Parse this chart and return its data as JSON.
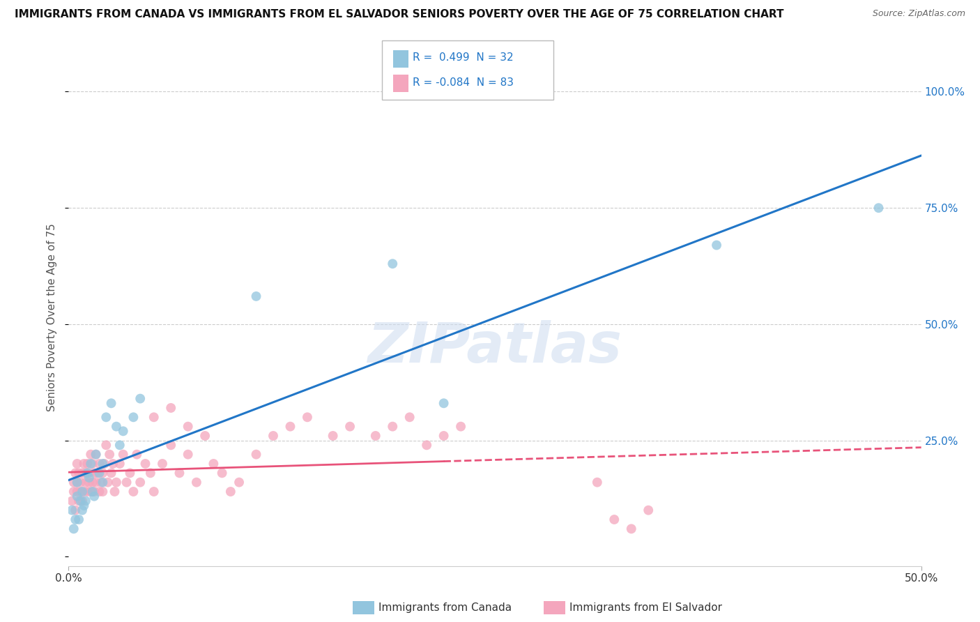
{
  "title": "IMMIGRANTS FROM CANADA VS IMMIGRANTS FROM EL SALVADOR SENIORS POVERTY OVER THE AGE OF 75 CORRELATION CHART",
  "source": "Source: ZipAtlas.com",
  "ylabel": "Seniors Poverty Over the Age of 75",
  "xlim": [
    0.0,
    0.5
  ],
  "ylim": [
    -0.02,
    1.05
  ],
  "R_canada": 0.499,
  "N_canada": 32,
  "R_salvador": -0.084,
  "N_salvador": 83,
  "canada_color": "#92c5de",
  "salvador_color": "#f4a6bd",
  "canada_line_color": "#2176c7",
  "salvador_line_color": "#e8537a",
  "watermark": "ZIPatlas",
  "canada_x": [
    0.002,
    0.003,
    0.004,
    0.005,
    0.005,
    0.006,
    0.007,
    0.008,
    0.008,
    0.009,
    0.01,
    0.011,
    0.012,
    0.013,
    0.014,
    0.015,
    0.016,
    0.018,
    0.02,
    0.02,
    0.022,
    0.025,
    0.028,
    0.03,
    0.032,
    0.038,
    0.042,
    0.11,
    0.19,
    0.22,
    0.38,
    0.475
  ],
  "canada_y": [
    0.1,
    0.06,
    0.08,
    0.13,
    0.16,
    0.08,
    0.12,
    0.1,
    0.14,
    0.11,
    0.12,
    0.18,
    0.17,
    0.2,
    0.14,
    0.13,
    0.22,
    0.18,
    0.16,
    0.2,
    0.3,
    0.33,
    0.28,
    0.24,
    0.27,
    0.3,
    0.34,
    0.56,
    0.63,
    0.33,
    0.67,
    0.75
  ],
  "salvador_x": [
    0.002,
    0.003,
    0.003,
    0.004,
    0.004,
    0.005,
    0.005,
    0.005,
    0.006,
    0.006,
    0.007,
    0.007,
    0.008,
    0.008,
    0.009,
    0.009,
    0.01,
    0.01,
    0.011,
    0.011,
    0.012,
    0.012,
    0.013,
    0.013,
    0.014,
    0.014,
    0.015,
    0.015,
    0.016,
    0.016,
    0.017,
    0.018,
    0.018,
    0.019,
    0.02,
    0.02,
    0.021,
    0.022,
    0.023,
    0.024,
    0.025,
    0.026,
    0.027,
    0.028,
    0.03,
    0.032,
    0.034,
    0.036,
    0.038,
    0.04,
    0.042,
    0.045,
    0.048,
    0.05,
    0.055,
    0.06,
    0.065,
    0.07,
    0.075,
    0.08,
    0.085,
    0.09,
    0.095,
    0.1,
    0.11,
    0.12,
    0.13,
    0.14,
    0.155,
    0.165,
    0.18,
    0.19,
    0.2,
    0.21,
    0.22,
    0.23,
    0.05,
    0.06,
    0.07,
    0.31,
    0.32,
    0.33,
    0.34
  ],
  "salvador_y": [
    0.12,
    0.14,
    0.16,
    0.1,
    0.18,
    0.14,
    0.16,
    0.2,
    0.12,
    0.18,
    0.14,
    0.16,
    0.12,
    0.18,
    0.14,
    0.2,
    0.16,
    0.18,
    0.14,
    0.2,
    0.16,
    0.18,
    0.14,
    0.22,
    0.16,
    0.2,
    0.14,
    0.18,
    0.16,
    0.22,
    0.18,
    0.14,
    0.2,
    0.16,
    0.18,
    0.14,
    0.2,
    0.24,
    0.16,
    0.22,
    0.18,
    0.2,
    0.14,
    0.16,
    0.2,
    0.22,
    0.16,
    0.18,
    0.14,
    0.22,
    0.16,
    0.2,
    0.18,
    0.14,
    0.2,
    0.24,
    0.18,
    0.22,
    0.16,
    0.26,
    0.2,
    0.18,
    0.14,
    0.16,
    0.22,
    0.26,
    0.28,
    0.3,
    0.26,
    0.28,
    0.26,
    0.28,
    0.3,
    0.24,
    0.26,
    0.28,
    0.3,
    0.32,
    0.28,
    0.16,
    0.08,
    0.06,
    0.1
  ]
}
